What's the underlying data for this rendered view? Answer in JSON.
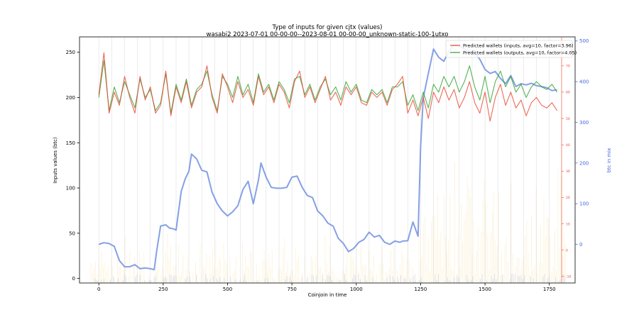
{
  "chart_data": {
    "type": "line",
    "title": "Type of inputs for given cjtx (values)",
    "subtitle": "wasabi2 2023-07-01 00-00-00--2023-08-01 00-00-00_unknown-static-100-1utxo",
    "xlabel": "Coinjoin in time",
    "ylabel": "Inputs values (btc)",
    "y2label": "btc in mix",
    "xlim": [
      -75,
      1850
    ],
    "ylim": [
      -5,
      267
    ],
    "y2lim": [
      -95,
      510
    ],
    "y3lim": [
      -12.5,
      81
    ],
    "x_ticks": [
      0,
      250,
      500,
      750,
      1000,
      1250,
      1500,
      1750
    ],
    "y_ticks": [
      0,
      50,
      100,
      150,
      200,
      250
    ],
    "y2_ticks": [
      0,
      100,
      200,
      300,
      400,
      500
    ],
    "y3_ticks": [
      -10,
      0,
      10,
      20,
      30,
      40,
      50,
      60,
      70
    ],
    "legend_position": "top-right",
    "vertical_lines_x": [
      0,
      50,
      100,
      150,
      200,
      250,
      300,
      350,
      400,
      450,
      500,
      550,
      600,
      650,
      700,
      750,
      800,
      850,
      900,
      950,
      1000,
      1050,
      1100,
      1150,
      1200,
      1250,
      1300,
      1350,
      1400,
      1450,
      1500,
      1550,
      1600,
      1650,
      1700,
      1750
    ],
    "series": [
      {
        "name": "Predicted wallets (inputs, avg=10, factor=3.96)",
        "color": "#e8442d",
        "axis": "right-red",
        "x": [
          0,
          20,
          40,
          60,
          80,
          100,
          120,
          140,
          160,
          180,
          200,
          220,
          240,
          260,
          280,
          300,
          320,
          340,
          360,
          380,
          400,
          420,
          440,
          460,
          480,
          500,
          520,
          540,
          560,
          580,
          600,
          620,
          640,
          660,
          680,
          700,
          720,
          740,
          760,
          780,
          800,
          820,
          840,
          860,
          880,
          900,
          920,
          940,
          960,
          980,
          1000,
          1020,
          1040,
          1060,
          1080,
          1100,
          1120,
          1140,
          1160,
          1180,
          1200,
          1220,
          1240,
          1260,
          1280,
          1300,
          1320,
          1340,
          1360,
          1380,
          1400,
          1420,
          1440,
          1460,
          1480,
          1500,
          1520,
          1540,
          1560,
          1580,
          1600,
          1620,
          1640,
          1660,
          1680,
          1700,
          1720,
          1740,
          1760,
          1780
        ],
        "values": [
          59,
          75,
          52,
          60,
          55,
          66,
          58,
          52,
          66,
          57,
          62,
          52,
          55,
          68,
          51,
          62,
          56,
          64,
          54,
          60,
          62,
          70,
          58,
          52,
          67,
          62,
          56,
          64,
          58,
          61,
          55,
          66,
          59,
          62,
          56,
          63,
          60,
          54,
          64,
          68,
          58,
          62,
          56,
          61,
          66,
          57,
          60,
          55,
          62,
          59,
          62,
          56,
          55,
          60,
          58,
          60,
          55,
          61,
          63,
          66,
          52,
          57,
          51,
          58,
          50,
          60,
          56,
          62,
          57,
          61,
          54,
          58,
          64,
          56,
          52,
          60,
          49,
          58,
          63,
          55,
          60,
          54,
          57,
          51,
          56,
          58,
          55,
          54,
          56,
          53
        ]
      },
      {
        "name": "Predicted wallets (outputs, avg=10, factor=4.05)",
        "color": "#2ca02c",
        "axis": "right-red",
        "x": [
          0,
          20,
          40,
          60,
          80,
          100,
          120,
          140,
          160,
          180,
          200,
          220,
          240,
          260,
          280,
          300,
          320,
          340,
          360,
          380,
          400,
          420,
          440,
          460,
          480,
          500,
          520,
          540,
          560,
          580,
          600,
          620,
          640,
          660,
          680,
          700,
          720,
          740,
          760,
          780,
          800,
          820,
          840,
          860,
          880,
          900,
          920,
          940,
          960,
          980,
          1000,
          1020,
          1040,
          1060,
          1080,
          1100,
          1120,
          1140,
          1160,
          1180,
          1200,
          1220,
          1240,
          1260,
          1280,
          1300,
          1320,
          1340,
          1360,
          1380,
          1400,
          1420,
          1440,
          1460,
          1480,
          1500,
          1520,
          1540,
          1560,
          1580,
          1600,
          1620,
          1640,
          1660,
          1680,
          1700,
          1720,
          1740,
          1760,
          1780
        ],
        "values": [
          58,
          72,
          53,
          62,
          56,
          64,
          59,
          54,
          65,
          58,
          61,
          53,
          56,
          67,
          52,
          63,
          57,
          65,
          55,
          61,
          63,
          68,
          59,
          53,
          66,
          63,
          58,
          66,
          59,
          63,
          56,
          67,
          60,
          63,
          57,
          64,
          61,
          56,
          65,
          66,
          59,
          63,
          57,
          62,
          65,
          59,
          62,
          57,
          64,
          60,
          63,
          57,
          56,
          61,
          59,
          61,
          56,
          62,
          62,
          64,
          55,
          59,
          53,
          60,
          54,
          63,
          60,
          66,
          62,
          66,
          60,
          64,
          70,
          62,
          57,
          66,
          56,
          64,
          68,
          62,
          66,
          60,
          63,
          58,
          62,
          64,
          62,
          61,
          63,
          60
        ]
      },
      {
        "name": "",
        "color": "#6f8fe0",
        "axis": "right-blue",
        "x": [
          0,
          20,
          40,
          60,
          80,
          100,
          120,
          140,
          160,
          180,
          200,
          215,
          225,
          240,
          260,
          275,
          290,
          300,
          320,
          335,
          350,
          360,
          380,
          400,
          420,
          440,
          460,
          480,
          500,
          520,
          540,
          560,
          580,
          600,
          620,
          630,
          650,
          670,
          690,
          710,
          730,
          750,
          770,
          790,
          810,
          830,
          850,
          870,
          890,
          910,
          930,
          950,
          970,
          990,
          1010,
          1030,
          1050,
          1070,
          1090,
          1110,
          1130,
          1150,
          1170,
          1180,
          1200,
          1220,
          1240,
          1250,
          1260,
          1280,
          1300,
          1320,
          1340,
          1360,
          1380,
          1400,
          1420,
          1440,
          1460,
          1480,
          1500,
          1520,
          1540,
          1560,
          1580,
          1600,
          1620,
          1640,
          1660,
          1680,
          1700,
          1720,
          1740,
          1760,
          1780
        ],
        "values": [
          0,
          4,
          2,
          -5,
          -40,
          -55,
          -55,
          -50,
          -60,
          -58,
          -60,
          -62,
          -15,
          45,
          48,
          40,
          38,
          35,
          130,
          160,
          180,
          222,
          210,
          182,
          178,
          128,
          100,
          82,
          70,
          80,
          95,
          135,
          155,
          100,
          158,
          200,
          165,
          140,
          138,
          138,
          140,
          165,
          168,
          140,
          120,
          115,
          82,
          70,
          52,
          45,
          15,
          2,
          -18,
          -10,
          5,
          12,
          30,
          18,
          22,
          5,
          0,
          8,
          5,
          8,
          9,
          55,
          20,
          240,
          360,
          420,
          480,
          460,
          450,
          475,
          490,
          488,
          480,
          476,
          470,
          455,
          430,
          420,
          425,
          408,
          395,
          415,
          388,
          395,
          392,
          396,
          390,
          388,
          385,
          378,
          380
        ]
      }
    ]
  }
}
